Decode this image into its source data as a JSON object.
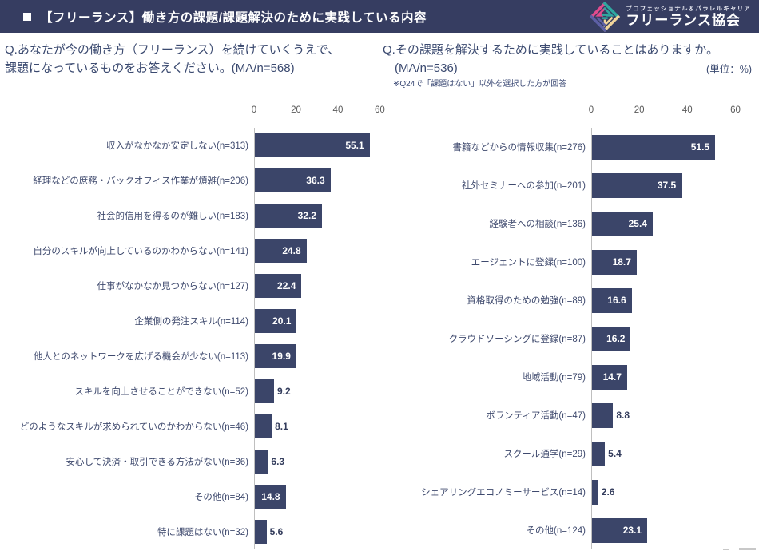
{
  "header": {
    "title": "■ 【フリーランス】働き方の課題/課題解決のために実践している内容",
    "title_text": "【フリーランス】働き方の課題/課題解決のために実践している内容",
    "logo": {
      "tagline": "プロフェッショナル＆パラレルキャリア",
      "name": "フリーランス協会",
      "icon": "diamond-interlocked-logo-icon"
    }
  },
  "colors": {
    "header_bg": "#363d61",
    "bar": "#3b4569",
    "question_text": "#3b4a70",
    "tick_text": "#595959",
    "axis_line": "#bfbfbf",
    "value_inside": "#ffffff",
    "value_outside": "#333c5c",
    "logo_pink": "#e24b8d",
    "logo_teal": "#2fa8a0",
    "logo_cream": "#f0d49b",
    "logo_indigo": "#5d5fa5"
  },
  "chart_data": [
    {
      "type": "bar",
      "orientation": "horizontal",
      "title": "Q.あなたが今の働き方（フリーランス）を続けていくうえで、課題になっているものをお答えください。(MA/n=568)",
      "title_lines": [
        "Q.あなたが今の働き方（フリーランス）を続けていくうえで、",
        "課題になっているものをお答えください。(MA/n=568)"
      ],
      "categories": [
        "収入がなかなか安定しない(n=313)",
        "経理などの庶務・バックオフィス作業が煩雑(n=206)",
        "社会的信用を得るのが難しい(n=183)",
        "自分のスキルが向上しているのかわからない(n=141)",
        "仕事がなかなか見つからない(n=127)",
        "企業側の発注スキル(n=114)",
        "他人とのネットワークを広げる機会が少ない(n=113)",
        "スキルを向上させることができない(n=52)",
        "どのようなスキルが求められていのかわからない(n=46)",
        "安心して決済・取引できる方法がない(n=36)",
        "その他(n=84)",
        "特に課題はない(n=32)"
      ],
      "values": [
        55.1,
        36.3,
        32.2,
        24.8,
        22.4,
        20.1,
        19.9,
        9.2,
        8.1,
        6.3,
        14.8,
        5.6
      ],
      "ticks": [
        0,
        20,
        40,
        60
      ],
      "xlim": [
        0,
        62.5
      ],
      "unit": "%",
      "grid": false,
      "legend": "none"
    },
    {
      "type": "bar",
      "orientation": "horizontal",
      "title": "Q.その課題を解決するために実践していることはありますか。(MA/n=536)",
      "title_lines": [
        "Q.その課題を解決するために実践していることはありますか。",
        "(MA/n=536)"
      ],
      "unit_label": "(単位：%)",
      "note": "※Q24で「課題はない」以外を選択した方が回答",
      "categories": [
        "書籍などからの情報収集(n=276)",
        "社外セミナーへの参加(n=201)",
        "経験者への相談(n=136)",
        "エージェントに登録(n=100)",
        "資格取得のための勉強(n=89)",
        "クラウドソーシングに登録(n=87)",
        "地域活動(n=79)",
        "ボランティア活動(n=47)",
        "スクール通学(n=29)",
        "シェアリングエコノミーサービス(n=14)",
        "その他(n=124)"
      ],
      "values": [
        51.5,
        37.5,
        25.4,
        18.7,
        16.6,
        16.2,
        14.7,
        8.8,
        5.4,
        2.6,
        23.1
      ],
      "ticks": [
        0,
        20,
        40,
        60
      ],
      "xlim": [
        0,
        62.5
      ],
      "unit": "%",
      "grid": false,
      "legend": "none"
    }
  ]
}
